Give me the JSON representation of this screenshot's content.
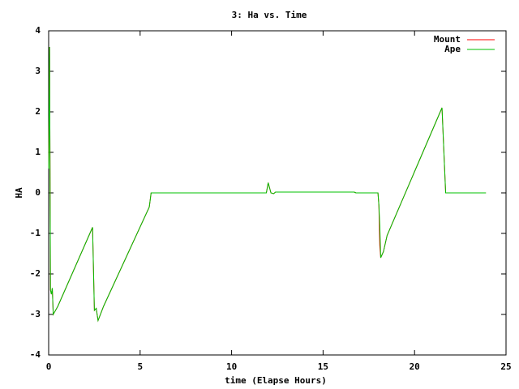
{
  "chart_data": {
    "type": "line",
    "title": "3: Ha vs. Time",
    "x_label": "time (Elapse Hours)",
    "y_label": "HA",
    "x": [
      0,
      0.05,
      0.1,
      0.15,
      0.2,
      0.25,
      0.5,
      2.4,
      2.5,
      2.6,
      2.7,
      3.0,
      5.5,
      5.6,
      11.9,
      12.0,
      12.15,
      12.3,
      12.4,
      16.7,
      16.8,
      18.0,
      18.05,
      18.1,
      18.15,
      18.3,
      18.5,
      21.5,
      21.7,
      23.9
    ],
    "series": [
      {
        "name": "Mount",
        "color": "#ff0000",
        "values": [
          0.6,
          3.6,
          -2.4,
          -2.5,
          -2.35,
          -3.0,
          -2.8,
          -0.85,
          -2.9,
          -2.85,
          -3.15,
          -2.8,
          -0.35,
          0,
          0,
          0.25,
          0,
          -0.02,
          0.02,
          0.02,
          0,
          0,
          -0.3,
          -1.3,
          -1.6,
          -1.45,
          -1.05,
          2.1,
          0,
          0
        ]
      },
      {
        "name": "Ape",
        "color": "#00c000",
        "values": [
          0.6,
          3.6,
          -2.4,
          -2.5,
          -2.35,
          -3.0,
          -2.8,
          -0.85,
          -2.9,
          -2.85,
          -3.15,
          -2.8,
          -0.35,
          0,
          0,
          0.25,
          0,
          -0.02,
          0.02,
          0.02,
          0,
          0,
          -0.3,
          -0.8,
          -1.6,
          -1.45,
          -1.05,
          2.1,
          0,
          0
        ]
      }
    ],
    "xlim": [
      0,
      25
    ],
    "xticks": [
      0,
      5,
      10,
      15,
      20,
      25
    ],
    "ylim": [
      -4,
      4
    ],
    "yticks": [
      -4,
      -3,
      -2,
      -1,
      0,
      1,
      2,
      3,
      4
    ],
    "grid": false,
    "legend": "top-right"
  }
}
